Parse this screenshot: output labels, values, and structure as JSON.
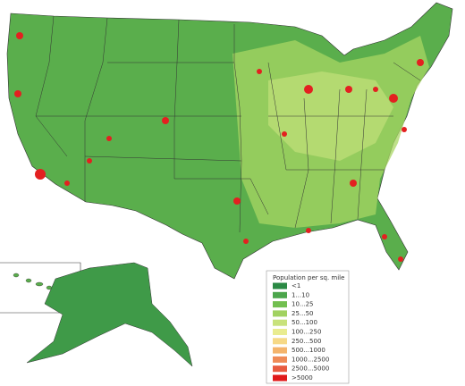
{
  "legend": {
    "title": "Population per sq. mile",
    "items": [
      {
        "label": "<1",
        "color": "#2b8a45"
      },
      {
        "label": "1...10",
        "color": "#4ca64c"
      },
      {
        "label": "10...25",
        "color": "#72bf50"
      },
      {
        "label": "25...50",
        "color": "#a1d260"
      },
      {
        "label": "50...100",
        "color": "#c8e27c"
      },
      {
        "label": "100...250",
        "color": "#e9ec90"
      },
      {
        "label": "250...500",
        "color": "#f6d987"
      },
      {
        "label": "500...1000",
        "color": "#f4b46c"
      },
      {
        "label": "1000...2500",
        "color": "#ef8b57"
      },
      {
        "label": "2500...5000",
        "color": "#e85b40"
      },
      {
        "label": ">5000",
        "color": "#e01919"
      }
    ]
  }
}
